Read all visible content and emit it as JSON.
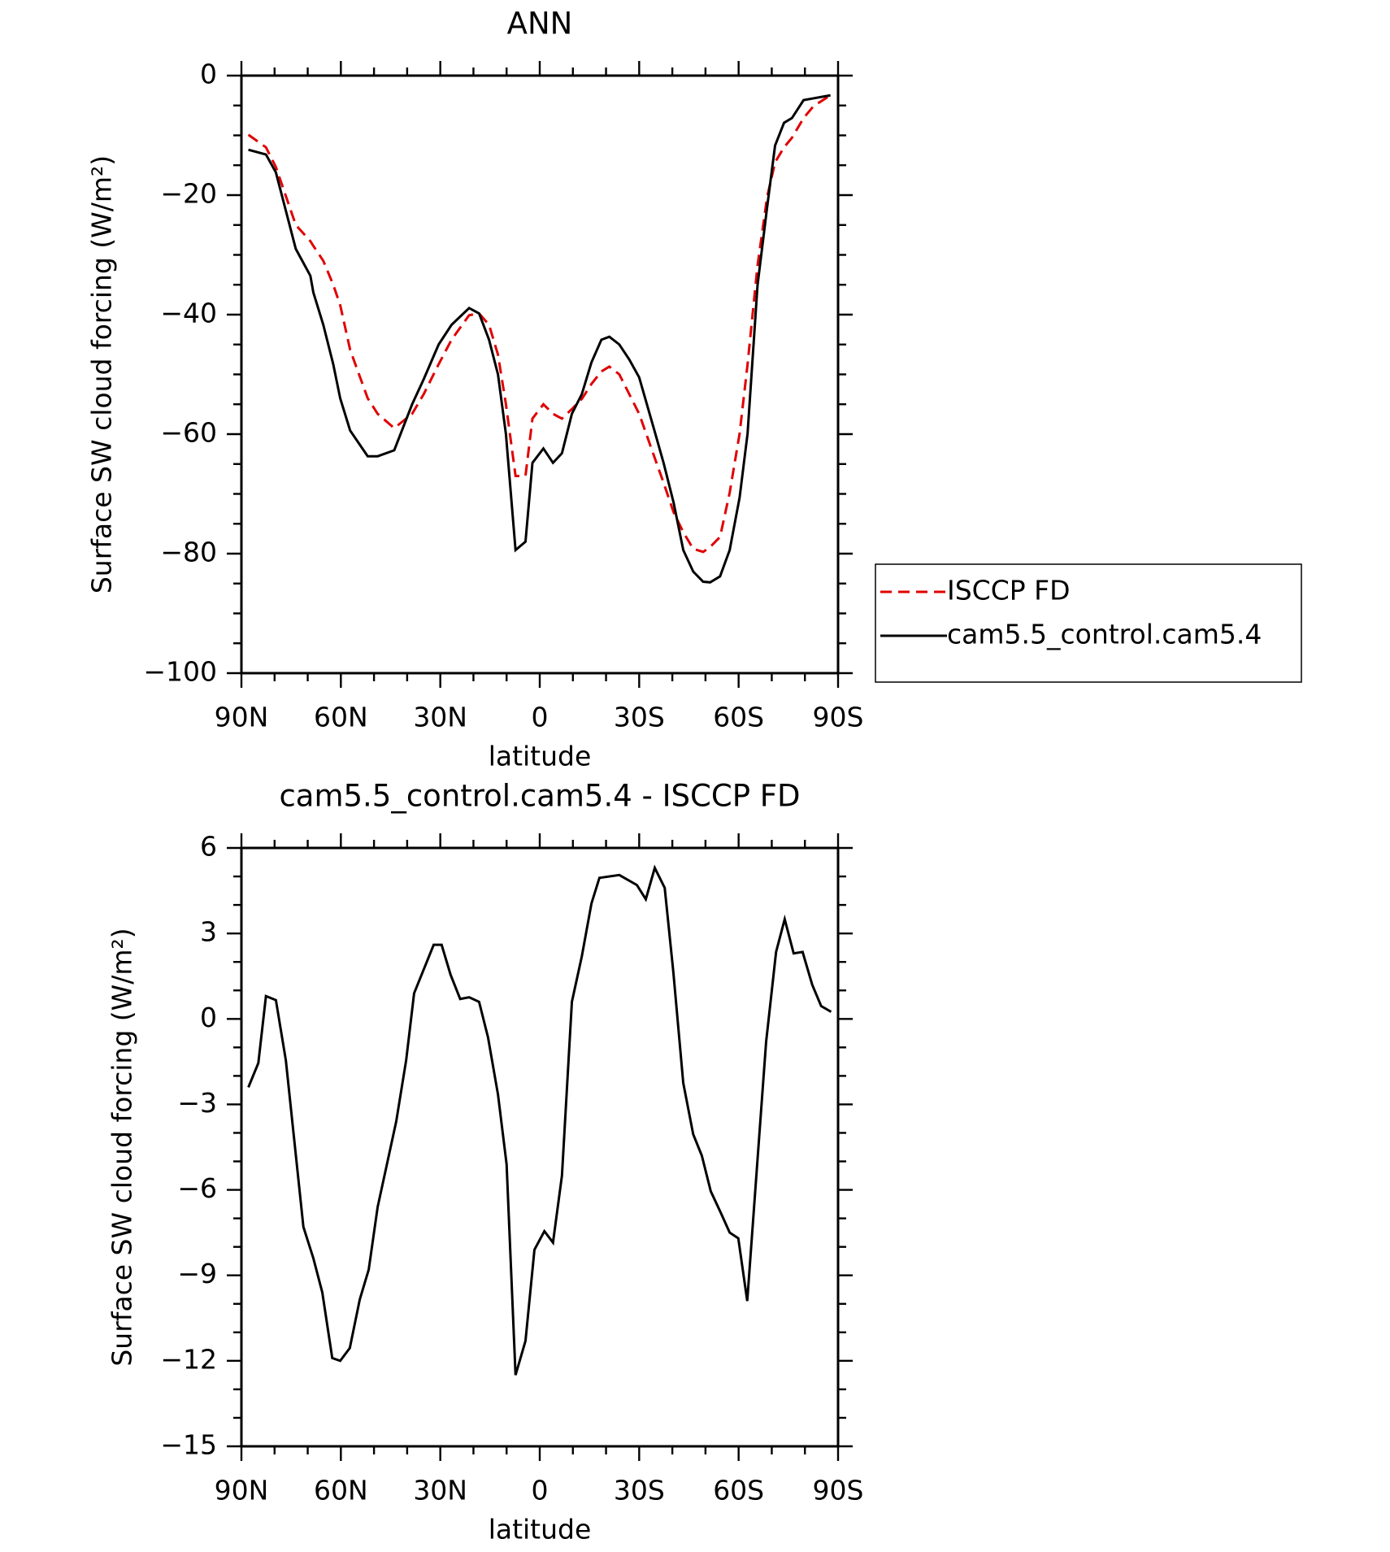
{
  "chart_data": [
    {
      "type": "line",
      "title": "ANN",
      "xlabel": "latitude",
      "ylabel": "Surface SW cloud forcing (W/m²)",
      "x": [
        87.9,
        82.6,
        79.6,
        73.6,
        69.2,
        68.3,
        65.3,
        62.3,
        60.2,
        57.2,
        51.9,
        48.9,
        43.9,
        38.5,
        35.0,
        30.5,
        26.6,
        21.3,
        18.3,
        15.3,
        12.6,
        10.2,
        7.3,
        4.3,
        2.2,
        -1.1,
        -4.0,
        -6.7,
        -9.7,
        -12.7,
        -15.6,
        -18.6,
        -21.0,
        -24.0,
        -27.0,
        -30.0,
        -34.7,
        -37.4,
        -40.4,
        -43.3,
        -46.3,
        -49.3,
        -51.4,
        -54.4,
        -57.3,
        -60.3,
        -62.7,
        -65.7,
        -68.6,
        -71.0,
        -73.7,
        -76.1,
        -79.6,
        -82.6,
        -87.7
      ],
      "series": [
        {
          "name": "ISCCP FD",
          "color": "#e00000",
          "linestyle": "dashed",
          "values": [
            -9.9,
            -12,
            -15.3,
            -25,
            -27.7,
            -28.5,
            -31,
            -35,
            -38.4,
            -45.9,
            -54,
            -56.6,
            -59,
            -56.6,
            -53.3,
            -48.3,
            -44.2,
            -40.1,
            -39.8,
            -41.7,
            -46.7,
            -55,
            -67,
            -67,
            -57.4,
            -55,
            -56.6,
            -57.4,
            -55.8,
            -54.1,
            -51.6,
            -49.5,
            -48.7,
            -50,
            -53.3,
            -56.6,
            -64,
            -68.2,
            -73.1,
            -76.4,
            -79.2,
            -79.7,
            -78.9,
            -77.2,
            -69.8,
            -59.9,
            -48.3,
            -31.8,
            -20.3,
            -14.5,
            -12,
            -10.4,
            -7.1,
            -5.1,
            -3.3
          ]
        },
        {
          "name": "cam5.5_control.cam5.4",
          "color": "#000000",
          "linestyle": "solid",
          "values": [
            -12.4,
            -13.2,
            -16.2,
            -29,
            -33.5,
            -36.3,
            -41.7,
            -48.3,
            -54,
            -59.4,
            -63.7,
            -63.7,
            -62.7,
            -55,
            -50.8,
            -45,
            -41.7,
            -38.9,
            -39.8,
            -44.2,
            -50,
            -60,
            -79.4,
            -78,
            -64.8,
            -62.4,
            -64.8,
            -63.2,
            -56.6,
            -53.3,
            -48,
            -44.2,
            -43.7,
            -45,
            -47.5,
            -50.5,
            -59.6,
            -64.9,
            -71.5,
            -79.4,
            -83,
            -84.7,
            -84.8,
            -83.8,
            -79.4,
            -70.6,
            -59.9,
            -35.1,
            -22,
            -11.7,
            -7.9,
            -7.1,
            -4.1,
            -3.8,
            -3.3
          ]
        }
      ],
      "xlim": [
        90,
        -90
      ],
      "xticks": [
        {
          "value": 90,
          "label": "90N"
        },
        {
          "value": 60,
          "label": "60N"
        },
        {
          "value": 30,
          "label": "30N"
        },
        0,
        {
          "value": -30,
          "label": "30S"
        },
        {
          "value": -60,
          "label": "60S"
        },
        {
          "value": -90,
          "label": "90S"
        }
      ],
      "ylim": [
        -100,
        0
      ],
      "yticks": [
        0,
        {
          "value": -20,
          "label": "−20"
        },
        {
          "value": -40,
          "label": "−40"
        },
        {
          "value": -60,
          "label": "−60"
        },
        {
          "value": -80,
          "label": "−80"
        },
        {
          "value": -100,
          "label": "−100"
        }
      ],
      "legend": "right",
      "grid": false
    },
    {
      "type": "line",
      "title": "cam5.5_control.cam5.4 - ISCCP FD",
      "xlabel": "latitude",
      "ylabel": "Surface SW cloud forcing (W/m²)",
      "x": [
        87.9,
        84.9,
        82.6,
        79.6,
        76.6,
        71.3,
        68.3,
        65.6,
        62.6,
        60.2,
        57.3,
        54.3,
        51.6,
        48.9,
        43.3,
        40.3,
        37.9,
        32.0,
        29.6,
        26.9,
        24.0,
        21.3,
        18.3,
        15.6,
        12.6,
        10.0,
        7.3,
        4.3,
        1.6,
        -1.4,
        -4.0,
        -6.7,
        -9.7,
        -12.7,
        -15.6,
        -18.0,
        -24.0,
        -29.3,
        -32.0,
        -34.7,
        -37.7,
        -40.3,
        -43.3,
        -46.3,
        -48.9,
        -51.6,
        -54.6,
        -57.3,
        -59.9,
        -62.6,
        -65.6,
        -68.3,
        -71.3,
        -73.9,
        -76.6,
        -79.3,
        -82.2,
        -84.9,
        -87.9
      ],
      "series": [
        {
          "color": "#000000",
          "linestyle": "solid",
          "values": [
            -2.4,
            -1.55,
            0.8,
            0.66,
            -1.45,
            -7.3,
            -8.4,
            -9.6,
            -11.9,
            -12,
            -11.55,
            -9.85,
            -8.8,
            -6.6,
            -3.6,
            -1.45,
            0.9,
            2.6,
            2.6,
            1.55,
            0.7,
            0.76,
            0.6,
            -0.65,
            -2.65,
            -5.1,
            -12.5,
            -11.3,
            -8.1,
            -7.45,
            -7.85,
            -5.5,
            0.6,
            2.2,
            4.05,
            4.95,
            5.05,
            4.7,
            4.2,
            5.3,
            4.6,
            1.65,
            -2.25,
            -4.05,
            -4.8,
            -6.05,
            -6.8,
            -7.5,
            -7.7,
            -9.9,
            -5.1,
            -0.8,
            2.35,
            3.5,
            2.3,
            2.35,
            1.2,
            0.45,
            0.25
          ]
        }
      ],
      "xlim": [
        90,
        -90
      ],
      "xticks": [
        {
          "value": 90,
          "label": "90N"
        },
        {
          "value": 60,
          "label": "60N"
        },
        {
          "value": 30,
          "label": "30N"
        },
        0,
        {
          "value": -30,
          "label": "30S"
        },
        {
          "value": -60,
          "label": "60S"
        },
        {
          "value": -90,
          "label": "90S"
        }
      ],
      "ylim": [
        -15,
        6
      ],
      "yticks": [
        6,
        3,
        0,
        {
          "value": -3,
          "label": "−3"
        },
        {
          "value": -6,
          "label": "−6"
        },
        {
          "value": -9,
          "label": "−9"
        },
        {
          "value": -12,
          "label": "−12"
        },
        {
          "value": -15,
          "label": "−15"
        }
      ],
      "grid": false
    }
  ]
}
